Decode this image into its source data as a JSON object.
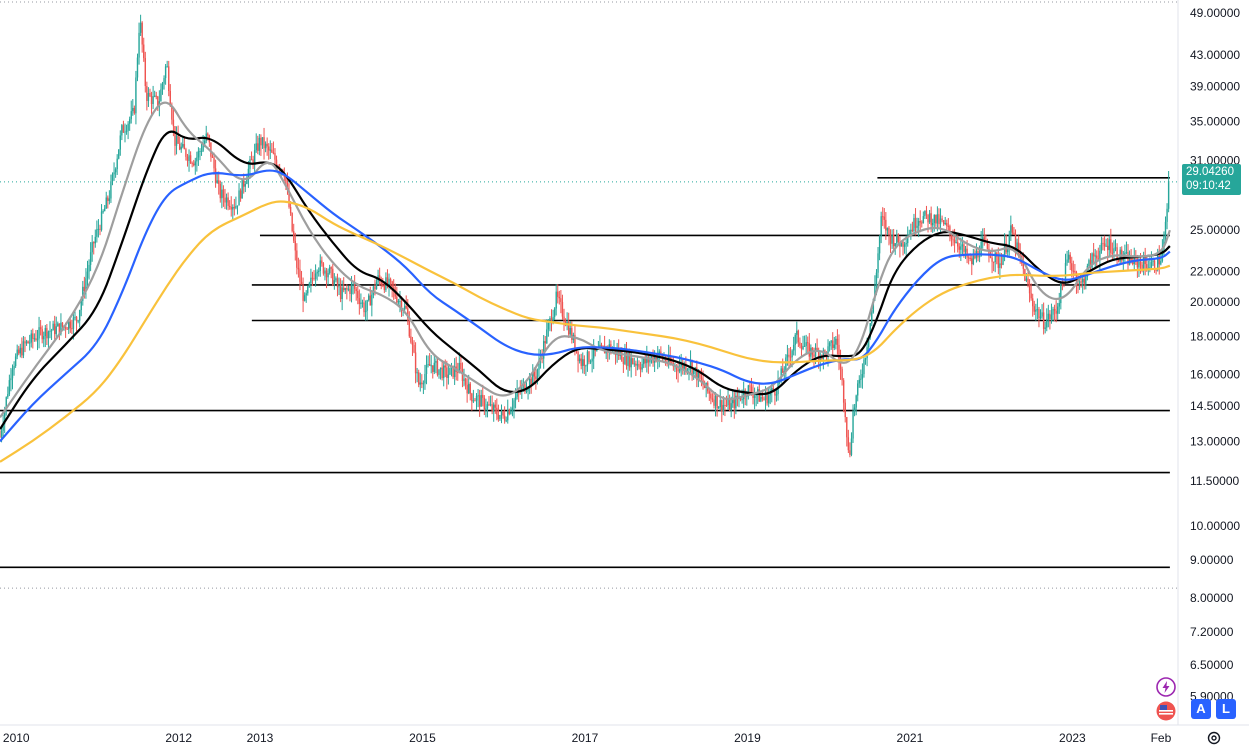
{
  "chart_data": {
    "type": "line",
    "scale": "log",
    "grid": false,
    "y_ticks": [
      49,
      43,
      39,
      35,
      31,
      25,
      22,
      20,
      18,
      16,
      14.5,
      13,
      11.5,
      10,
      9,
      8,
      7.2,
      6.5,
      5.9
    ],
    "y_tick_labels": [
      "49.00000",
      "43.00000",
      "39.00000",
      "35.00000",
      "31.00000",
      "25.00000",
      "22.00000",
      "20.00000",
      "18.00000",
      "16.00000",
      "14.50000",
      "13.00000",
      "11.50000",
      "10.00000",
      "9.00000",
      "8.00000",
      "7.20000",
      "6.50000",
      "5.90000"
    ],
    "x_tick_labels": [
      {
        "label": "2010",
        "year": 2010.0
      },
      {
        "label": "2012",
        "year": 2012.0
      },
      {
        "label": "2013",
        "year": 2013.0
      },
      {
        "label": "2015",
        "year": 2015.0
      },
      {
        "label": "2017",
        "year": 2017.0
      },
      {
        "label": "2019",
        "year": 2019.0
      },
      {
        "label": "2021",
        "year": 2021.0
      },
      {
        "label": "2023",
        "year": 2023.0
      },
      {
        "label": "Feb",
        "year": 2024.09
      }
    ],
    "x_range": [
      2009.8,
      2024.3
    ],
    "y_range": [
      5.4,
      51
    ],
    "last_price": {
      "value": "29.04260",
      "countdown": "09:10:42",
      "price": 29.0426
    },
    "horizontal_levels": [
      {
        "value": 29.4,
        "from": 2020.6,
        "to": 2024.2
      },
      {
        "value": 24.6,
        "from": 2013.0,
        "to": 2024.2
      },
      {
        "value": 21.1,
        "from": 2012.9,
        "to": 2024.2
      },
      {
        "value": 18.9,
        "from": 2012.9,
        "to": 2024.2
      },
      {
        "value": 14.3,
        "from": 2009.8,
        "to": 2024.2
      },
      {
        "value": 11.8,
        "from": 2009.8,
        "to": 2024.2
      },
      {
        "value": 8.8,
        "from": 2009.8,
        "to": 2024.2
      }
    ],
    "dotted_levels": [
      29.04,
      8.25
    ],
    "series": [
      {
        "color": "#26a69a",
        "role": "price-up"
      },
      {
        "color": "#ef5350",
        "role": "price-down"
      },
      {
        "color": "#000000",
        "role": "ma-black",
        "points": [
          [
            2009.8,
            13.5
          ],
          [
            2010.2,
            15.8
          ],
          [
            2010.6,
            17.5
          ],
          [
            2011.0,
            19.5
          ],
          [
            2011.3,
            24.0
          ],
          [
            2011.6,
            30.0
          ],
          [
            2011.85,
            34.5
          ],
          [
            2012.1,
            33.0
          ],
          [
            2012.4,
            33.5
          ],
          [
            2012.8,
            30.5
          ],
          [
            2013.1,
            31.0
          ],
          [
            2013.3,
            30.0
          ],
          [
            2013.6,
            26.5
          ],
          [
            2013.9,
            24.0
          ],
          [
            2014.2,
            22.0
          ],
          [
            2014.5,
            21.5
          ],
          [
            2014.8,
            20.0
          ],
          [
            2015.1,
            18.3
          ],
          [
            2015.4,
            17.2
          ],
          [
            2015.7,
            16.2
          ],
          [
            2016.0,
            15.1
          ],
          [
            2016.3,
            15.2
          ],
          [
            2016.6,
            16.5
          ],
          [
            2016.9,
            17.4
          ],
          [
            2017.2,
            17.3
          ],
          [
            2017.5,
            17.2
          ],
          [
            2017.8,
            17.0
          ],
          [
            2018.1,
            16.7
          ],
          [
            2018.4,
            16.2
          ],
          [
            2018.7,
            15.3
          ],
          [
            2019.0,
            15.1
          ],
          [
            2019.3,
            15.0
          ],
          [
            2019.6,
            16.2
          ],
          [
            2019.9,
            17.0
          ],
          [
            2020.2,
            16.9
          ],
          [
            2020.4,
            17.0
          ],
          [
            2020.6,
            19.0
          ],
          [
            2020.8,
            22.0
          ],
          [
            2021.1,
            24.0
          ],
          [
            2021.4,
            25.0
          ],
          [
            2021.7,
            24.6
          ],
          [
            2022.0,
            24.0
          ],
          [
            2022.3,
            23.8
          ],
          [
            2022.6,
            22.0
          ],
          [
            2022.9,
            21.0
          ],
          [
            2023.2,
            22.0
          ],
          [
            2023.5,
            22.9
          ],
          [
            2023.8,
            23.0
          ],
          [
            2024.1,
            23.2
          ],
          [
            2024.2,
            23.8
          ]
        ]
      },
      {
        "color": "#9e9e9e",
        "role": "ma-gray",
        "points": [
          [
            2009.8,
            14.0
          ],
          [
            2010.2,
            16.2
          ],
          [
            2010.6,
            18.5
          ],
          [
            2011.0,
            22.0
          ],
          [
            2011.3,
            28.0
          ],
          [
            2011.6,
            35.0
          ],
          [
            2011.85,
            38.0
          ],
          [
            2012.1,
            34.0
          ],
          [
            2012.4,
            32.0
          ],
          [
            2012.8,
            28.5
          ],
          [
            2013.1,
            31.5
          ],
          [
            2013.3,
            29.0
          ],
          [
            2013.6,
            25.0
          ],
          [
            2013.9,
            22.5
          ],
          [
            2014.2,
            21.0
          ],
          [
            2014.5,
            20.5
          ],
          [
            2014.8,
            19.5
          ],
          [
            2015.1,
            17.0
          ],
          [
            2015.4,
            16.3
          ],
          [
            2015.7,
            15.5
          ],
          [
            2016.0,
            14.8
          ],
          [
            2016.3,
            15.6
          ],
          [
            2016.6,
            18.0
          ],
          [
            2016.9,
            18.0
          ],
          [
            2017.2,
            17.2
          ],
          [
            2017.5,
            17.0
          ],
          [
            2017.8,
            16.8
          ],
          [
            2018.1,
            16.5
          ],
          [
            2018.4,
            15.8
          ],
          [
            2018.7,
            14.7
          ],
          [
            2019.0,
            15.0
          ],
          [
            2019.3,
            15.3
          ],
          [
            2019.6,
            16.8
          ],
          [
            2019.9,
            17.4
          ],
          [
            2020.2,
            16.3
          ],
          [
            2020.4,
            17.5
          ],
          [
            2020.6,
            21.0
          ],
          [
            2020.8,
            23.8
          ],
          [
            2021.1,
            25.0
          ],
          [
            2021.4,
            25.3
          ],
          [
            2021.7,
            23.9
          ],
          [
            2022.0,
            23.3
          ],
          [
            2022.3,
            23.9
          ],
          [
            2022.6,
            20.5
          ],
          [
            2022.9,
            20.0
          ],
          [
            2023.2,
            22.5
          ],
          [
            2023.5,
            23.2
          ],
          [
            2023.8,
            23.0
          ],
          [
            2024.1,
            23.2
          ],
          [
            2024.2,
            25.0
          ]
        ]
      },
      {
        "color": "#2962ff",
        "role": "ma-blue",
        "points": [
          [
            2009.8,
            13.0
          ],
          [
            2010.2,
            14.6
          ],
          [
            2010.6,
            16.0
          ],
          [
            2011.0,
            17.5
          ],
          [
            2011.3,
            20.5
          ],
          [
            2011.6,
            25.0
          ],
          [
            2011.85,
            28.0
          ],
          [
            2012.1,
            29.0
          ],
          [
            2012.4,
            30.0
          ],
          [
            2012.8,
            29.5
          ],
          [
            2013.1,
            30.2
          ],
          [
            2013.3,
            29.8
          ],
          [
            2013.6,
            28.0
          ],
          [
            2013.9,
            26.3
          ],
          [
            2014.2,
            25.0
          ],
          [
            2014.5,
            23.7
          ],
          [
            2014.8,
            22.3
          ],
          [
            2015.1,
            20.5
          ],
          [
            2015.4,
            19.5
          ],
          [
            2015.7,
            18.5
          ],
          [
            2016.0,
            17.5
          ],
          [
            2016.3,
            17.0
          ],
          [
            2016.6,
            17.0
          ],
          [
            2016.9,
            17.4
          ],
          [
            2017.2,
            17.4
          ],
          [
            2017.5,
            17.3
          ],
          [
            2017.8,
            17.1
          ],
          [
            2018.1,
            16.9
          ],
          [
            2018.4,
            16.6
          ],
          [
            2018.7,
            16.2
          ],
          [
            2019.0,
            15.6
          ],
          [
            2019.3,
            15.5
          ],
          [
            2019.6,
            16.0
          ],
          [
            2019.9,
            16.5
          ],
          [
            2020.2,
            16.8
          ],
          [
            2020.4,
            16.7
          ],
          [
            2020.6,
            17.8
          ],
          [
            2020.8,
            19.5
          ],
          [
            2021.1,
            21.5
          ],
          [
            2021.4,
            23.0
          ],
          [
            2021.7,
            23.2
          ],
          [
            2022.0,
            23.2
          ],
          [
            2022.3,
            23.0
          ],
          [
            2022.6,
            22.0
          ],
          [
            2022.9,
            21.3
          ],
          [
            2023.2,
            21.8
          ],
          [
            2023.5,
            22.4
          ],
          [
            2023.8,
            22.8
          ],
          [
            2024.1,
            22.9
          ],
          [
            2024.2,
            23.4
          ]
        ]
      },
      {
        "color": "#f9c23c",
        "role": "ma-yellow",
        "points": [
          [
            2009.8,
            12.2
          ],
          [
            2010.2,
            13.0
          ],
          [
            2010.6,
            14.0
          ],
          [
            2011.0,
            15.2
          ],
          [
            2011.3,
            16.8
          ],
          [
            2011.6,
            19.0
          ],
          [
            2011.85,
            21.0
          ],
          [
            2012.1,
            23.0
          ],
          [
            2012.4,
            25.0
          ],
          [
            2012.8,
            26.2
          ],
          [
            2013.1,
            27.2
          ],
          [
            2013.3,
            27.4
          ],
          [
            2013.6,
            26.8
          ],
          [
            2013.9,
            25.5
          ],
          [
            2014.2,
            24.6
          ],
          [
            2014.5,
            23.8
          ],
          [
            2014.8,
            22.9
          ],
          [
            2015.1,
            22.0
          ],
          [
            2015.4,
            21.2
          ],
          [
            2015.7,
            20.3
          ],
          [
            2016.0,
            19.6
          ],
          [
            2016.3,
            19.0
          ],
          [
            2016.6,
            18.8
          ],
          [
            2016.9,
            18.6
          ],
          [
            2017.2,
            18.5
          ],
          [
            2017.5,
            18.3
          ],
          [
            2017.8,
            18.1
          ],
          [
            2018.1,
            17.9
          ],
          [
            2018.4,
            17.6
          ],
          [
            2018.7,
            17.2
          ],
          [
            2019.0,
            16.8
          ],
          [
            2019.3,
            16.6
          ],
          [
            2019.6,
            16.6
          ],
          [
            2019.9,
            16.7
          ],
          [
            2020.2,
            16.7
          ],
          [
            2020.4,
            16.8
          ],
          [
            2020.6,
            17.3
          ],
          [
            2020.8,
            18.3
          ],
          [
            2021.1,
            19.6
          ],
          [
            2021.4,
            20.6
          ],
          [
            2021.7,
            21.2
          ],
          [
            2022.0,
            21.6
          ],
          [
            2022.3,
            21.8
          ],
          [
            2022.6,
            21.7
          ],
          [
            2022.9,
            21.7
          ],
          [
            2023.2,
            21.9
          ],
          [
            2023.5,
            22.0
          ],
          [
            2023.8,
            22.1
          ],
          [
            2024.1,
            22.2
          ],
          [
            2024.2,
            22.4
          ]
        ]
      }
    ],
    "price_anchors": [
      [
        2009.8,
        13.2
      ],
      [
        2009.95,
        16.5
      ],
      [
        2010.1,
        17.5
      ],
      [
        2010.3,
        18.2
      ],
      [
        2010.55,
        18.5
      ],
      [
        2010.75,
        19.0
      ],
      [
        2010.95,
        24.0
      ],
      [
        2011.15,
        28.0
      ],
      [
        2011.3,
        34.0
      ],
      [
        2011.45,
        36.0
      ],
      [
        2011.52,
        48.5
      ],
      [
        2011.6,
        38.0
      ],
      [
        2011.75,
        37.0
      ],
      [
        2011.85,
        42.0
      ],
      [
        2011.95,
        33.0
      ],
      [
        2012.05,
        32.0
      ],
      [
        2012.2,
        31.0
      ],
      [
        2012.35,
        33.5
      ],
      [
        2012.5,
        28.0
      ],
      [
        2012.7,
        27.0
      ],
      [
        2012.85,
        30.0
      ],
      [
        2013.0,
        33.0
      ],
      [
        2013.15,
        31.5
      ],
      [
        2013.3,
        30.0
      ],
      [
        2013.45,
        22.5
      ],
      [
        2013.55,
        20.0
      ],
      [
        2013.7,
        22.5
      ],
      [
        2013.85,
        22.0
      ],
      [
        2014.0,
        20.5
      ],
      [
        2014.15,
        21.0
      ],
      [
        2014.3,
        19.5
      ],
      [
        2014.45,
        21.5
      ],
      [
        2014.6,
        21.0
      ],
      [
        2014.8,
        19.5
      ],
      [
        2014.95,
        15.5
      ],
      [
        2015.1,
        16.5
      ],
      [
        2015.3,
        16.0
      ],
      [
        2015.45,
        16.3
      ],
      [
        2015.6,
        15.0
      ],
      [
        2015.8,
        14.5
      ],
      [
        2016.0,
        14.0
      ],
      [
        2016.2,
        15.2
      ],
      [
        2016.4,
        16.0
      ],
      [
        2016.55,
        18.5
      ],
      [
        2016.65,
        20.3
      ],
      [
        2016.8,
        18.5
      ],
      [
        2016.95,
        16.6
      ],
      [
        2017.1,
        17.0
      ],
      [
        2017.3,
        17.4
      ],
      [
        2017.5,
        16.8
      ],
      [
        2017.7,
        16.5
      ],
      [
        2017.9,
        17.0
      ],
      [
        2018.1,
        16.4
      ],
      [
        2018.3,
        16.5
      ],
      [
        2018.5,
        15.2
      ],
      [
        2018.65,
        14.6
      ],
      [
        2018.8,
        14.5
      ],
      [
        2019.0,
        15.3
      ],
      [
        2019.2,
        14.8
      ],
      [
        2019.35,
        15.3
      ],
      [
        2019.5,
        16.8
      ],
      [
        2019.6,
        18.0
      ],
      [
        2019.75,
        17.2
      ],
      [
        2019.95,
        17.0
      ],
      [
        2020.1,
        17.8
      ],
      [
        2020.2,
        14.5
      ],
      [
        2020.25,
        12.2
      ],
      [
        2020.3,
        14.2
      ],
      [
        2020.45,
        17.0
      ],
      [
        2020.55,
        20.0
      ],
      [
        2020.65,
        26.0
      ],
      [
        2020.75,
        24.5
      ],
      [
        2020.9,
        24.0
      ],
      [
        2021.05,
        25.5
      ],
      [
        2021.1,
        26.0
      ],
      [
        2021.25,
        26.0
      ],
      [
        2021.4,
        25.5
      ],
      [
        2021.6,
        24.0
      ],
      [
        2021.75,
        22.5
      ],
      [
        2021.9,
        24.0
      ],
      [
        2022.1,
        22.5
      ],
      [
        2022.25,
        25.0
      ],
      [
        2022.4,
        22.0
      ],
      [
        2022.5,
        20.0
      ],
      [
        2022.65,
        18.8
      ],
      [
        2022.8,
        19.5
      ],
      [
        2022.95,
        23.0
      ],
      [
        2023.1,
        21.0
      ],
      [
        2023.25,
        23.0
      ],
      [
        2023.45,
        24.0
      ],
      [
        2023.6,
        23.0
      ],
      [
        2023.8,
        22.6
      ],
      [
        2024.0,
        22.4
      ],
      [
        2024.1,
        23.0
      ],
      [
        2024.15,
        25.5
      ],
      [
        2024.19,
        29.0426
      ]
    ]
  },
  "ui": {
    "btn_a": "A",
    "btn_l": "L",
    "lightning_icon": "lightning-icon",
    "flag_icon": "us-flag-icon",
    "settings_icon": "gear-icon"
  }
}
